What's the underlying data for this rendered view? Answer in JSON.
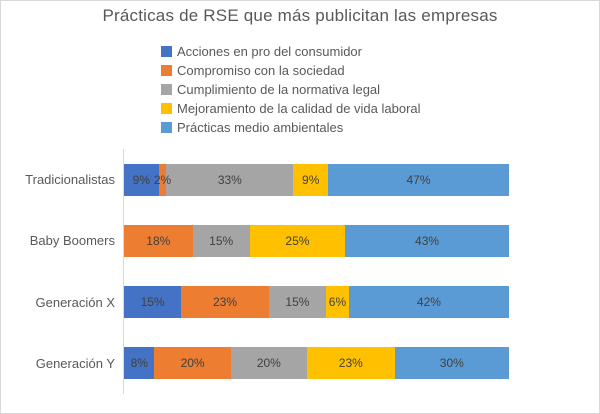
{
  "title": "Prácticas de RSE que más publicitan las empresas",
  "colors": {
    "series_1": "#4472C4",
    "series_2": "#ED7D31",
    "series_3": "#A5A5A5",
    "series_4": "#FFC000",
    "series_5": "#5B9BD5",
    "text_muted": "#595959",
    "data_label": "#404040",
    "axis_line": "#d9d9d9",
    "canvas_border": "#d9d9d9"
  },
  "chart_data": {
    "type": "bar",
    "variant": "horizontal-stacked-100",
    "title": "Prácticas de RSE que más publicitan las empresas",
    "xlabel": "",
    "ylabel": "",
    "xlim": [
      0,
      100
    ],
    "grid": false,
    "legend_position": "top",
    "categories": [
      "Tradicionalistas",
      "Baby Boomers",
      "Generación X",
      "Generación Y"
    ],
    "series": [
      {
        "name": "Acciones en pro del consumidor",
        "color": "#4472C4",
        "values": [
          9,
          0,
          15,
          8
        ],
        "labels": [
          "9%",
          "",
          "15%",
          "8%"
        ]
      },
      {
        "name": "Compromiso con la sociedad",
        "color": "#ED7D31",
        "values": [
          2,
          18,
          23,
          20
        ],
        "labels": [
          "2%",
          "18%",
          "23%",
          "20%"
        ]
      },
      {
        "name": "Cumplimiento de la normativa legal",
        "color": "#A5A5A5",
        "values": [
          33,
          15,
          15,
          20
        ],
        "labels": [
          "33%",
          "15%",
          "15%",
          "20%"
        ]
      },
      {
        "name": "Mejoramiento de la calidad de vida laboral",
        "color": "#FFC000",
        "values": [
          9,
          25,
          6,
          23
        ],
        "labels": [
          "9%",
          "25%",
          "6%",
          "23%"
        ]
      },
      {
        "name": "Prácticas medio ambientales",
        "color": "#5B9BD5",
        "values": [
          47,
          43,
          42,
          30
        ],
        "labels": [
          "47%",
          "43%",
          "42%",
          "30%"
        ]
      }
    ]
  }
}
